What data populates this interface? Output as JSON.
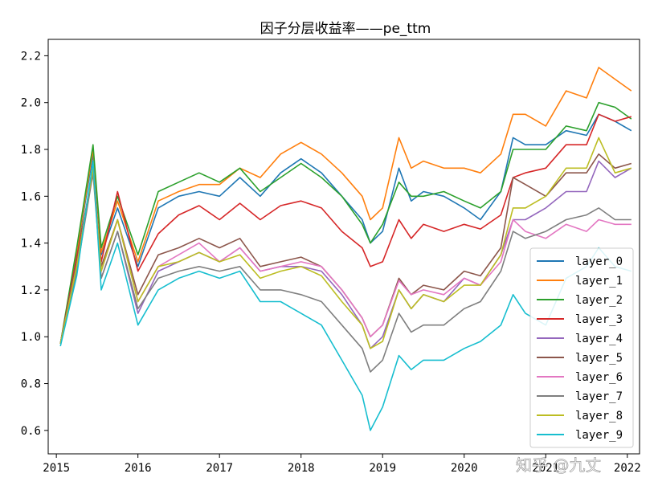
{
  "chart_data": {
    "type": "line",
    "title": "因子分层收益率——pe_ttm",
    "xlabel": "",
    "ylabel": "",
    "xlim": [
      2014.9,
      2022.15
    ],
    "ylim": [
      0.5,
      2.27
    ],
    "x_ticks": [
      {
        "value": 2015,
        "label": "2015"
      },
      {
        "value": 2016,
        "label": "2016"
      },
      {
        "value": 2017,
        "label": "2017"
      },
      {
        "value": 2018,
        "label": "2018"
      },
      {
        "value": 2019,
        "label": "2019"
      },
      {
        "value": 2020,
        "label": "2020"
      },
      {
        "value": 2021,
        "label": "2021"
      },
      {
        "value": 2022,
        "label": "2022"
      }
    ],
    "y_ticks": [
      {
        "value": 0.6,
        "label": "0.6"
      },
      {
        "value": 0.8,
        "label": "0.8"
      },
      {
        "value": 1.0,
        "label": "1.0"
      },
      {
        "value": 1.2,
        "label": "1.2"
      },
      {
        "value": 1.4,
        "label": "1.4"
      },
      {
        "value": 1.6,
        "label": "1.6"
      },
      {
        "value": 1.8,
        "label": "1.8"
      },
      {
        "value": 2.0,
        "label": "2.0"
      },
      {
        "value": 2.2,
        "label": "2.2"
      }
    ],
    "grid": false,
    "legend_position": "lower-right",
    "x": [
      2015.05,
      2015.25,
      2015.45,
      2015.55,
      2015.75,
      2016.0,
      2016.25,
      2016.5,
      2016.75,
      2017.0,
      2017.25,
      2017.5,
      2017.75,
      2018.0,
      2018.25,
      2018.5,
      2018.75,
      2018.85,
      2019.0,
      2019.2,
      2019.35,
      2019.5,
      2019.75,
      2020.0,
      2020.2,
      2020.45,
      2020.6,
      2020.75,
      2021.0,
      2021.25,
      2021.5,
      2021.65,
      2021.85,
      2022.05
    ],
    "series": [
      {
        "name": "layer_0",
        "color": "#1f77b4",
        "values": [
          0.97,
          1.35,
          1.78,
          1.35,
          1.55,
          1.3,
          1.55,
          1.6,
          1.62,
          1.6,
          1.68,
          1.6,
          1.7,
          1.76,
          1.7,
          1.6,
          1.5,
          1.4,
          1.45,
          1.72,
          1.58,
          1.62,
          1.6,
          1.55,
          1.5,
          1.62,
          1.85,
          1.82,
          1.82,
          1.88,
          1.86,
          1.95,
          1.92,
          1.88
        ]
      },
      {
        "name": "layer_1",
        "color": "#ff7f0e",
        "values": [
          0.97,
          1.36,
          1.8,
          1.36,
          1.58,
          1.32,
          1.58,
          1.62,
          1.65,
          1.65,
          1.72,
          1.68,
          1.78,
          1.83,
          1.78,
          1.7,
          1.6,
          1.5,
          1.55,
          1.85,
          1.72,
          1.75,
          1.72,
          1.72,
          1.7,
          1.78,
          1.95,
          1.95,
          1.9,
          2.05,
          2.02,
          2.15,
          2.1,
          2.05
        ]
      },
      {
        "name": "layer_2",
        "color": "#2ca02c",
        "values": [
          0.97,
          1.38,
          1.82,
          1.38,
          1.6,
          1.35,
          1.62,
          1.66,
          1.7,
          1.66,
          1.72,
          1.62,
          1.68,
          1.74,
          1.68,
          1.6,
          1.48,
          1.4,
          1.48,
          1.66,
          1.6,
          1.6,
          1.62,
          1.58,
          1.55,
          1.62,
          1.8,
          1.8,
          1.8,
          1.9,
          1.88,
          2.0,
          1.98,
          1.93
        ]
      },
      {
        "name": "layer_3",
        "color": "#d62728",
        "values": [
          0.97,
          1.34,
          1.7,
          1.32,
          1.62,
          1.28,
          1.44,
          1.52,
          1.56,
          1.5,
          1.57,
          1.5,
          1.56,
          1.58,
          1.55,
          1.45,
          1.38,
          1.3,
          1.32,
          1.5,
          1.42,
          1.48,
          1.45,
          1.48,
          1.46,
          1.52,
          1.68,
          1.7,
          1.72,
          1.82,
          1.82,
          1.95,
          1.92,
          1.94
        ]
      },
      {
        "name": "layer_4",
        "color": "#9467bd",
        "values": [
          0.97,
          1.3,
          1.72,
          1.25,
          1.45,
          1.1,
          1.28,
          1.32,
          1.36,
          1.32,
          1.38,
          1.28,
          1.3,
          1.3,
          1.28,
          1.18,
          1.05,
          0.95,
          1.0,
          1.2,
          1.12,
          1.18,
          1.15,
          1.25,
          1.22,
          1.35,
          1.5,
          1.5,
          1.55,
          1.62,
          1.62,
          1.75,
          1.68,
          1.72
        ]
      },
      {
        "name": "layer_5",
        "color": "#8c564b",
        "values": [
          0.97,
          1.32,
          1.72,
          1.3,
          1.5,
          1.18,
          1.35,
          1.38,
          1.42,
          1.38,
          1.42,
          1.3,
          1.32,
          1.34,
          1.3,
          1.2,
          1.08,
          1.0,
          1.05,
          1.25,
          1.18,
          1.22,
          1.2,
          1.28,
          1.26,
          1.38,
          1.68,
          1.65,
          1.6,
          1.7,
          1.7,
          1.78,
          1.72,
          1.74
        ]
      },
      {
        "name": "layer_6",
        "color": "#e377c2",
        "values": [
          0.97,
          1.3,
          1.72,
          1.28,
          1.5,
          1.15,
          1.3,
          1.35,
          1.4,
          1.32,
          1.38,
          1.28,
          1.3,
          1.32,
          1.3,
          1.2,
          1.08,
          1.0,
          1.05,
          1.24,
          1.18,
          1.2,
          1.18,
          1.25,
          1.22,
          1.32,
          1.5,
          1.45,
          1.42,
          1.48,
          1.45,
          1.5,
          1.48,
          1.48
        ]
      },
      {
        "name": "layer_7",
        "color": "#7f7f7f",
        "values": [
          0.97,
          1.28,
          1.7,
          1.25,
          1.45,
          1.12,
          1.25,
          1.28,
          1.3,
          1.28,
          1.3,
          1.2,
          1.2,
          1.18,
          1.15,
          1.05,
          0.95,
          0.85,
          0.9,
          1.1,
          1.02,
          1.05,
          1.05,
          1.12,
          1.15,
          1.28,
          1.45,
          1.42,
          1.45,
          1.5,
          1.52,
          1.55,
          1.5,
          1.5
        ]
      },
      {
        "name": "layer_8",
        "color": "#bcbd22",
        "values": [
          0.97,
          1.3,
          1.72,
          1.28,
          1.5,
          1.15,
          1.3,
          1.32,
          1.36,
          1.32,
          1.35,
          1.25,
          1.28,
          1.3,
          1.26,
          1.15,
          1.05,
          0.95,
          0.98,
          1.2,
          1.12,
          1.18,
          1.15,
          1.22,
          1.22,
          1.35,
          1.55,
          1.55,
          1.6,
          1.72,
          1.72,
          1.85,
          1.7,
          1.72
        ]
      },
      {
        "name": "layer_9",
        "color": "#17becf",
        "values": [
          0.96,
          1.26,
          1.75,
          1.2,
          1.4,
          1.05,
          1.2,
          1.25,
          1.28,
          1.25,
          1.28,
          1.15,
          1.15,
          1.1,
          1.05,
          0.9,
          0.75,
          0.6,
          0.7,
          0.92,
          0.86,
          0.9,
          0.9,
          0.95,
          0.98,
          1.05,
          1.18,
          1.1,
          1.05,
          1.25,
          1.3,
          1.38,
          1.3,
          1.28
        ]
      }
    ]
  },
  "watermark": {
    "text": "知乎 @九丈"
  }
}
